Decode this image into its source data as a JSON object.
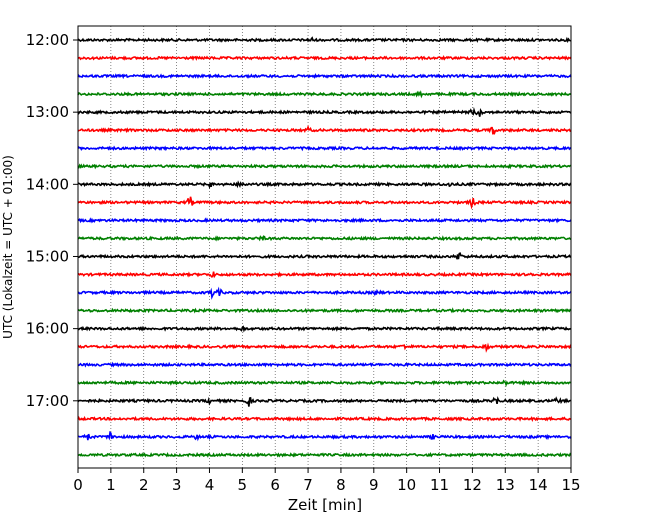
{
  "chart_data": {
    "type": "line",
    "title": "",
    "xlabel": "Zeit  [min]",
    "ylabel": "UTC (Lokalzeit = UTC + 01:00)",
    "xlim": [
      0,
      15
    ],
    "x_ticks": [
      0,
      1,
      2,
      3,
      4,
      5,
      6,
      7,
      8,
      9,
      10,
      11,
      12,
      13,
      14,
      15
    ],
    "x_tick_labels": [
      "0",
      "1",
      "2",
      "3",
      "4",
      "5",
      "6",
      "7",
      "8",
      "9",
      "10",
      "11",
      "12",
      "13",
      "14",
      "15"
    ],
    "y_ticks": [
      {
        "label": "12:00",
        "trace": 0
      },
      {
        "label": "13:00",
        "trace": 4
      },
      {
        "label": "14:00",
        "trace": 8
      },
      {
        "label": "15:00",
        "trace": 12
      },
      {
        "label": "16:00",
        "trace": 16
      },
      {
        "label": "17:00",
        "trace": 20
      }
    ],
    "grid": "vertical dotted at each minute",
    "trace_interval_min": 15,
    "colors": [
      "#000000",
      "#ff0000",
      "#0000ff",
      "#008000"
    ],
    "series": [
      {
        "start": "12:00",
        "color": "#000000",
        "events": [
          [
            7.1,
            1.0
          ]
        ]
      },
      {
        "start": "12:15",
        "color": "#ff0000",
        "events": []
      },
      {
        "start": "12:30",
        "color": "#0000ff",
        "events": []
      },
      {
        "start": "12:45",
        "color": "#008000",
        "events": [
          [
            10.4,
            0.8
          ]
        ]
      },
      {
        "start": "13:00",
        "color": "#000000",
        "events": [
          [
            12.2,
            2.0
          ],
          [
            12.0,
            1.2
          ]
        ]
      },
      {
        "start": "13:15",
        "color": "#ff0000",
        "events": [
          [
            12.6,
            2.2
          ],
          [
            7.0,
            1.0
          ]
        ]
      },
      {
        "start": "13:30",
        "color": "#0000ff",
        "events": []
      },
      {
        "start": "13:45",
        "color": "#008000",
        "events": []
      },
      {
        "start": "14:00",
        "color": "#000000",
        "events": [
          [
            4.0,
            1.2
          ],
          [
            4.95,
            1.4
          ],
          [
            11.3,
            0.8
          ]
        ]
      },
      {
        "start": "14:15",
        "color": "#ff0000",
        "events": [
          [
            3.4,
            2.6
          ],
          [
            12.0,
            2.0
          ]
        ]
      },
      {
        "start": "14:30",
        "color": "#0000ff",
        "events": []
      },
      {
        "start": "14:45",
        "color": "#008000",
        "events": [
          [
            5.6,
            0.8
          ]
        ]
      },
      {
        "start": "15:00",
        "color": "#000000",
        "events": [
          [
            11.6,
            1.8
          ]
        ]
      },
      {
        "start": "15:15",
        "color": "#ff0000",
        "events": [
          [
            4.1,
            1.2
          ],
          [
            13.75,
            1.2
          ]
        ]
      },
      {
        "start": "15:30",
        "color": "#0000ff",
        "events": [
          [
            4.05,
            2.2
          ],
          [
            4.3,
            1.2
          ],
          [
            9.1,
            0.8
          ]
        ]
      },
      {
        "start": "15:45",
        "color": "#008000",
        "events": []
      },
      {
        "start": "16:00",
        "color": "#000000",
        "events": [
          [
            5.0,
            0.8
          ]
        ]
      },
      {
        "start": "16:15",
        "color": "#ff0000",
        "events": [
          [
            12.4,
            1.6
          ],
          [
            9.9,
            0.8
          ]
        ]
      },
      {
        "start": "16:30",
        "color": "#0000ff",
        "events": []
      },
      {
        "start": "16:45",
        "color": "#008000",
        "events": [
          [
            13.0,
            0.8
          ]
        ]
      },
      {
        "start": "17:00",
        "color": "#000000",
        "events": [
          [
            5.2,
            2.2
          ],
          [
            12.7,
            2.2
          ],
          [
            14.6,
            1.2
          ],
          [
            4.0,
            0.8
          ]
        ]
      },
      {
        "start": "17:15",
        "color": "#ff0000",
        "events": []
      },
      {
        "start": "17:30",
        "color": "#0000ff",
        "events": [
          [
            1.0,
            2.6
          ],
          [
            0.3,
            1.2
          ],
          [
            3.6,
            0.8
          ],
          [
            10.8,
            0.8
          ]
        ]
      },
      {
        "start": "17:45",
        "color": "#008000",
        "events": []
      }
    ]
  }
}
